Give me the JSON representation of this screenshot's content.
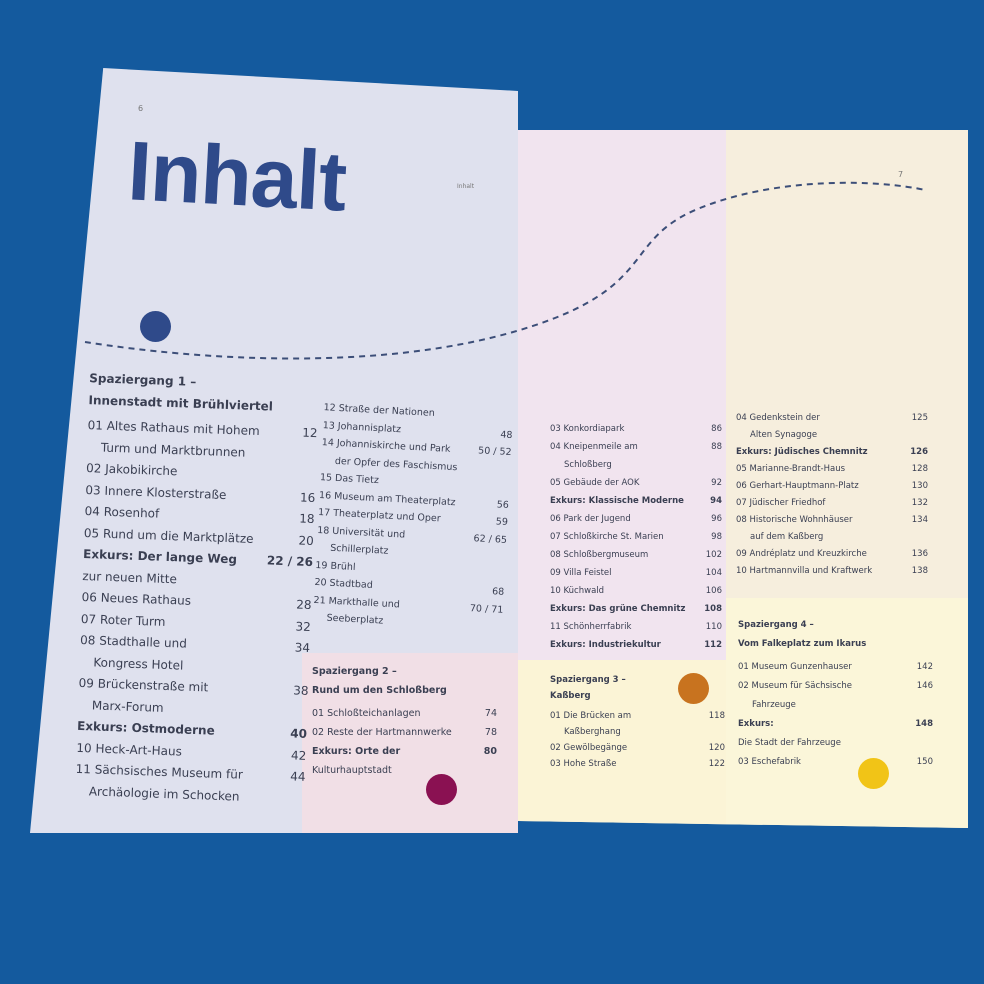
{
  "left_page": {
    "page_number": "6",
    "title": "Inhalt",
    "walk1": {
      "heading": [
        "Spaziergang 1 –",
        "Innenstadt mit Brühlviertel"
      ],
      "entries": [
        {
          "label": "01 Altes Rathaus mit Hohem",
          "cont": "Turm und Marktbrunnen",
          "page": "12"
        },
        {
          "label": "02 Jakobikirche",
          "page": ""
        },
        {
          "label": "03 Innere Klosterstraße",
          "page": "16"
        },
        {
          "label": "04 Rosenhof",
          "page": "18"
        },
        {
          "label": "05 Rund um die Marktplätze",
          "page": "20"
        },
        {
          "label": "Exkurs: Der lange Weg",
          "cont": "zur neuen Mitte",
          "page": "22 / 26",
          "bold": true
        },
        {
          "label": "06 Neues Rathaus",
          "page": "28"
        },
        {
          "label": "07 Roter Turm",
          "page": "32"
        },
        {
          "label": "08 Stadthalle und",
          "cont": "Kongress Hotel",
          "page": "34"
        },
        {
          "label": "09 Brückenstraße mit",
          "cont": "Marx-Forum",
          "page": "38"
        },
        {
          "label": "Exkurs: Ostmoderne",
          "page": "40",
          "bold": true
        },
        {
          "label": "10 Heck-Art-Haus",
          "page": "42"
        },
        {
          "label": "11 Sächsisches Museum für",
          "cont": "Archäologie im Schocken",
          "page": "44"
        }
      ],
      "entries2": [
        {
          "label": "12 Straße der Nationen",
          "page": ""
        },
        {
          "label": "13 Johannisplatz",
          "page": "48"
        },
        {
          "label": "14 Johanniskirche und Park",
          "cont": "der Opfer des Faschismus",
          "page": "50 / 52"
        },
        {
          "label": "15 Das Tietz",
          "page": ""
        },
        {
          "label": "16 Museum am Theaterplatz",
          "page": "56"
        },
        {
          "label": "17 Theaterplatz und Oper",
          "page": "59"
        },
        {
          "label": "18 Universität und",
          "cont": "Schillerplatz",
          "page": "62 / 65"
        },
        {
          "label": "19 Brühl",
          "page": ""
        },
        {
          "label": "20 Stadtbad",
          "page": "68"
        },
        {
          "label": "21 Markthalle und",
          "cont": "Seeberplatz",
          "page": "70 / 71"
        }
      ]
    },
    "walk2": {
      "heading": [
        "Spaziergang 2 –",
        "Rund um den Schloßberg"
      ],
      "entries": [
        {
          "label": "01 Schloßteichanlagen",
          "page": "74"
        },
        {
          "label": "02 Reste der Hartmannwerke",
          "page": "78"
        },
        {
          "label": "Exkurs: Orte der",
          "cont": "Kulturhauptstadt",
          "page": "80",
          "bold": true
        }
      ]
    }
  },
  "right_page": {
    "page_number": "7",
    "running_head": "Inhalt",
    "walk2_cont": [
      {
        "label": "03 Konkordiapark",
        "page": "86"
      },
      {
        "label": "04 Kneipenmeile am",
        "cont": "Schloßberg",
        "page": "88"
      },
      {
        "label": "05 Gebäude der AOK",
        "page": "92"
      },
      {
        "label": "Exkurs: Klassische Moderne",
        "page": "94",
        "bold": true
      },
      {
        "label": "06 Park der Jugend",
        "page": "96"
      },
      {
        "label": "07 Schloßkirche St. Marien",
        "page": "98"
      },
      {
        "label": "08 Schloßbergmuseum",
        "page": "102"
      },
      {
        "label": "09 Villa Feistel",
        "page": "104"
      },
      {
        "label": "10 Küchwald",
        "page": "106"
      },
      {
        "label": "Exkurs: Das grüne Chemnitz",
        "page": "108",
        "bold": true
      },
      {
        "label": "11 Schönherrfabrik",
        "page": "110"
      },
      {
        "label": "Exkurs: Industriekultur",
        "page": "112",
        "bold": true
      }
    ],
    "walk3": {
      "heading": [
        "Spaziergang 3 –",
        "Kaßberg"
      ],
      "entries": [
        {
          "label": "01 Die Brücken am",
          "cont": "Kaßberghang",
          "page": "118"
        },
        {
          "label": "02 Gewölbegänge",
          "page": "120"
        },
        {
          "label": "03 Hohe Straße",
          "page": "122"
        }
      ],
      "entries2": [
        {
          "label": "04 Gedenkstein der",
          "cont": "Alten Synagoge",
          "page": "125"
        },
        {
          "label": "Exkurs: Jüdisches Chemnitz",
          "page": "126",
          "bold": true
        },
        {
          "label": "05 Marianne-Brandt-Haus",
          "page": "128"
        },
        {
          "label": "06 Gerhart-Hauptmann-Platz",
          "page": "130"
        },
        {
          "label": "07 Jüdischer Friedhof",
          "page": "132"
        },
        {
          "label": "08 Historische Wohnhäuser",
          "cont": "auf dem Kaßberg",
          "page": "134"
        },
        {
          "label": "09 Andréplatz und Kreuzkirche",
          "page": "136"
        },
        {
          "label": "10 Hartmannvilla und Kraftwerk",
          "page": "138"
        }
      ]
    },
    "walk4": {
      "heading": [
        "Spaziergang 4 –",
        "Vom Falkeplatz zum Ikarus"
      ],
      "entries": [
        {
          "label": "01 Museum Gunzenhauser",
          "page": "142"
        },
        {
          "label": "02 Museum für Sächsische",
          "cont": "Fahrzeuge",
          "page": "146"
        },
        {
          "label": "Exkurs:",
          "cont": "Die Stadt der Fahrzeuge",
          "page": "148",
          "bold": true
        },
        {
          "label": "03 Eschefabrik",
          "page": "150"
        }
      ]
    }
  },
  "colors": {
    "background": "#145a9e",
    "title": "#2f4a8a",
    "dot_blue": "#2f4a8a",
    "dot_purple": "#8a1152",
    "dot_orange": "#c8731f",
    "dot_yellow": "#f1c417"
  }
}
